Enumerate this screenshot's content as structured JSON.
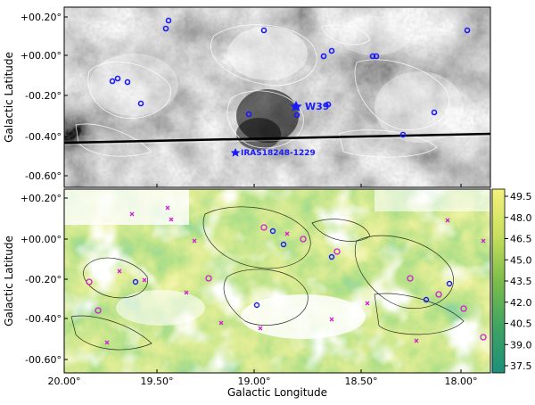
{
  "figure": {
    "xlabel": "Galactic Longitude",
    "ylabel_top": "Galactic Latitude",
    "ylabel_bottom": "Galactic Latitude",
    "x_ticks": [
      "20.00°",
      "19.50°",
      "19.00°",
      "18.50°",
      "18.00°"
    ],
    "y_ticks_top": [
      "+00.20°",
      "+00.00°",
      "-00.20°",
      "-00.40°",
      "-00.60°"
    ],
    "y_ticks_bottom": [
      "+00.20°",
      "+00.00°",
      "-00.20°",
      "-00.40°",
      "-00.60°"
    ],
    "annotations": {
      "w39": "W39",
      "iras": "IRAS18248-1229"
    },
    "colorbar_ticks": [
      "49.5",
      "48.0",
      "46.5",
      "45.0",
      "43.5",
      "42.0",
      "40.5",
      "39.0",
      "37.5"
    ],
    "colors": {
      "marker_blue": "#1a1aff",
      "marker_magenta": "#cc22cc",
      "cmap_low": "#1b8f7a",
      "cmap_mid": "#7cbd4a",
      "cmap_high": "#f4f27a"
    }
  }
}
